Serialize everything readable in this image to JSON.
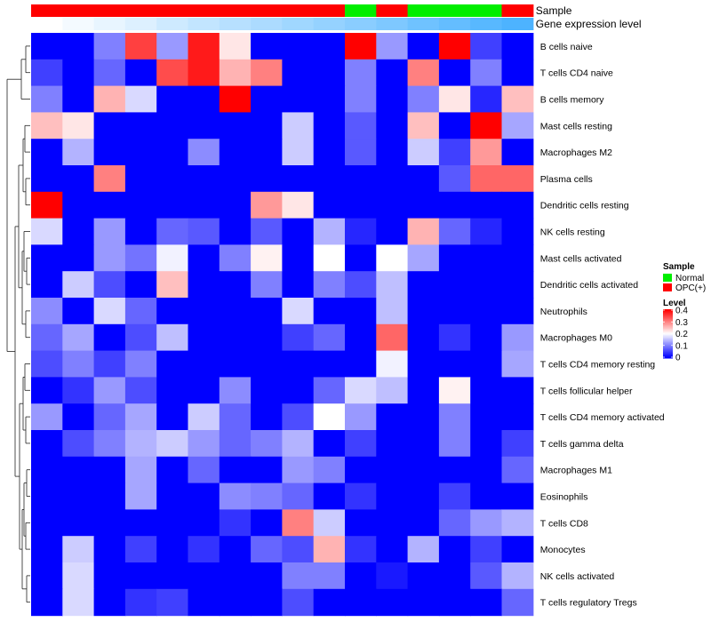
{
  "chart_data": {
    "type": "heatmap",
    "title": "",
    "color_scale": {
      "title": "Level",
      "min": 0,
      "max": 0.4,
      "ticks": [
        "0.4",
        "0.3",
        "0.2",
        "0.1",
        "0"
      ],
      "low_color": "#0000ff",
      "mid_color": "#ffffff",
      "high_color": "#ff0000"
    },
    "annotations": [
      {
        "label": "Sample",
        "values": [
          "OPC(+)",
          "OPC(+)",
          "OPC(+)",
          "OPC(+)",
          "OPC(+)",
          "OPC(+)",
          "OPC(+)",
          "OPC(+)",
          "OPC(+)",
          "OPC(+)",
          "Normal",
          "OPC(+)",
          "Normal",
          "Normal",
          "Normal",
          "OPC(+)"
        ]
      },
      {
        "label": "Gene expression level",
        "values": [
          0.0,
          0.03,
          0.06,
          0.09,
          0.13,
          0.16,
          0.19,
          0.22,
          0.25,
          0.28,
          0.31,
          0.34,
          0.38,
          0.41,
          0.44,
          0.47
        ]
      }
    ],
    "sample_legend": {
      "title": "Sample",
      "entries": [
        {
          "name": "Normal",
          "color": "#00ee00"
        },
        {
          "name": "OPC(+)",
          "color": "#ff0000"
        }
      ]
    },
    "annotation_value_colors": {
      "low": "#ffffff",
      "high": "#4db3ff"
    },
    "rows": [
      "B cells naive",
      "T cells CD4 naive",
      "B cells memory",
      "Mast cells resting",
      "Macrophages M2",
      "Plasma cells",
      "Dendritic cells resting",
      "NK cells resting",
      "Mast cells activated",
      "Dendritic cells activated",
      "Neutrophils",
      "Macrophages M0",
      "T cells CD4 memory resting",
      "T cells follicular helper",
      "T cells CD4 memory activated",
      "T cells gamma delta",
      "Macrophages M1",
      "Eosinophils",
      "T cells CD8",
      "Monocytes",
      "NK cells activated",
      "T cells regulatory  Tregs"
    ],
    "values": [
      [
        0,
        0,
        0.1,
        0.35,
        0.12,
        0.38,
        0.22,
        0,
        0,
        0,
        0.4,
        0.12,
        0,
        0.4,
        0.05,
        0
      ],
      [
        0.05,
        0,
        0.08,
        0,
        0.34,
        0.38,
        0.26,
        0.3,
        0,
        0,
        0.1,
        0,
        0.3,
        0,
        0.1,
        0
      ],
      [
        0.1,
        0,
        0.26,
        0.17,
        0,
        0,
        0.4,
        0,
        0,
        0,
        0.1,
        0,
        0.1,
        0.22,
        0.03,
        0.25
      ],
      [
        0.25,
        0.22,
        0,
        0,
        0,
        0,
        0,
        0,
        0.16,
        0,
        0.07,
        0,
        0.25,
        0,
        0.4,
        0.13
      ],
      [
        0,
        0.14,
        0,
        0,
        0,
        0.11,
        0,
        0,
        0.16,
        0,
        0.07,
        0,
        0.16,
        0.05,
        0.28,
        0
      ],
      [
        0,
        0,
        0.3,
        0,
        0,
        0,
        0,
        0,
        0,
        0,
        0,
        0,
        0,
        0.07,
        0.32,
        0.32
      ],
      [
        0.4,
        0,
        0,
        0,
        0,
        0,
        0,
        0.28,
        0.22,
        0,
        0,
        0,
        0,
        0,
        0,
        0
      ],
      [
        0.17,
        0,
        0.12,
        0,
        0.08,
        0.07,
        0,
        0.07,
        0,
        0.14,
        0.03,
        0,
        0.26,
        0.08,
        0.03,
        0
      ],
      [
        0,
        0,
        0.12,
        0.09,
        0.19,
        0,
        0.1,
        0.21,
        0,
        0.2,
        0,
        0.2,
        0.13,
        0,
        0,
        0
      ],
      [
        0,
        0.16,
        0.06,
        0,
        0.25,
        0,
        0,
        0.1,
        0,
        0.1,
        0.06,
        0.15,
        0,
        0,
        0,
        0
      ],
      [
        0.11,
        0,
        0.17,
        0.08,
        0,
        0,
        0,
        0,
        0.17,
        0,
        0,
        0.15,
        0,
        0,
        0,
        0
      ],
      [
        0.08,
        0.13,
        0,
        0.06,
        0.15,
        0,
        0,
        0,
        0.05,
        0.08,
        0,
        0.32,
        0,
        0.04,
        0,
        0.12
      ],
      [
        0.06,
        0.1,
        0.05,
        0.1,
        0,
        0,
        0,
        0,
        0,
        0,
        0,
        0.19,
        0,
        0,
        0,
        0.13
      ],
      [
        0,
        0.04,
        0.12,
        0.06,
        0,
        0,
        0.11,
        0,
        0,
        0.08,
        0.17,
        0.15,
        0,
        0.21,
        0,
        0
      ],
      [
        0.12,
        0,
        0.08,
        0.13,
        0,
        0.16,
        0.08,
        0,
        0.06,
        0.2,
        0.12,
        0,
        0,
        0.1,
        0,
        0
      ],
      [
        0,
        0.06,
        0.1,
        0.14,
        0.16,
        0.12,
        0.08,
        0.1,
        0.14,
        0,
        0.05,
        0,
        0,
        0.1,
        0,
        0.05
      ],
      [
        0,
        0,
        0,
        0.13,
        0,
        0.08,
        0,
        0,
        0.12,
        0.1,
        0,
        0,
        0,
        0,
        0,
        0.08
      ],
      [
        0,
        0,
        0,
        0.13,
        0,
        0,
        0.11,
        0.1,
        0.08,
        0,
        0.04,
        0,
        0,
        0.05,
        0,
        0
      ],
      [
        0,
        0,
        0,
        0,
        0,
        0,
        0.04,
        0,
        0.3,
        0.16,
        0,
        0,
        0,
        0.08,
        0.12,
        0.14
      ],
      [
        0,
        0.16,
        0,
        0.05,
        0,
        0.04,
        0,
        0.08,
        0.06,
        0.26,
        0.04,
        0,
        0.14,
        0,
        0.05,
        0
      ],
      [
        0,
        0.17,
        0,
        0,
        0,
        0,
        0,
        0,
        0.1,
        0.1,
        0,
        0.02,
        0,
        0,
        0.07,
        0.14
      ],
      [
        0,
        0.17,
        0,
        0.04,
        0.05,
        0,
        0,
        0,
        0.06,
        0,
        0,
        0,
        0,
        0,
        0,
        0.08
      ]
    ]
  }
}
